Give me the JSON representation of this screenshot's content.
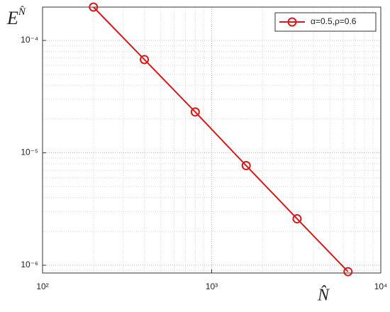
{
  "chart_data": {
    "type": "line",
    "ylabel": {
      "base": "E",
      "sup": "N̂"
    },
    "xlabel": "N̂",
    "x": [
      200,
      400,
      800,
      1600,
      3200,
      6400
    ],
    "series": [
      {
        "name": "α=0.5,ρ=0.6",
        "color": "#d41a1a",
        "marker": "circle",
        "values": [
          0.000198,
          6.76e-05,
          2.31e-05,
          7.7e-06,
          2.59e-06,
          8.77e-07
        ]
      }
    ],
    "log_x": true,
    "log_y": true,
    "xlim": [
      100,
      10000
    ],
    "ylim": [
      8.53e-07,
      0.000198
    ],
    "xticks": [
      {
        "value": 100,
        "label": "10²"
      },
      {
        "value": 1000,
        "label": "10³"
      },
      {
        "value": 10000,
        "label": "10⁴"
      }
    ],
    "yticks": [
      {
        "value": 1e-06,
        "label": "10⁻⁶"
      },
      {
        "value": 1e-05,
        "label": "10⁻⁵"
      },
      {
        "value": 0.0001,
        "label": "10⁻⁴"
      }
    ],
    "xminorticks": [
      200,
      300,
      400,
      500,
      600,
      700,
      800,
      900,
      2000,
      3000,
      4000,
      5000,
      6000,
      7000,
      8000,
      9000
    ],
    "yminorticks": [
      9e-07,
      2e-06,
      3e-06,
      4e-06,
      5e-06,
      6e-06,
      7e-06,
      8e-06,
      9e-06,
      2e-05,
      3e-05,
      4e-05,
      5e-05,
      6e-05,
      7e-05,
      8e-05,
      9e-05
    ],
    "grid": true,
    "minor_grid": true,
    "legend": "upper right"
  }
}
